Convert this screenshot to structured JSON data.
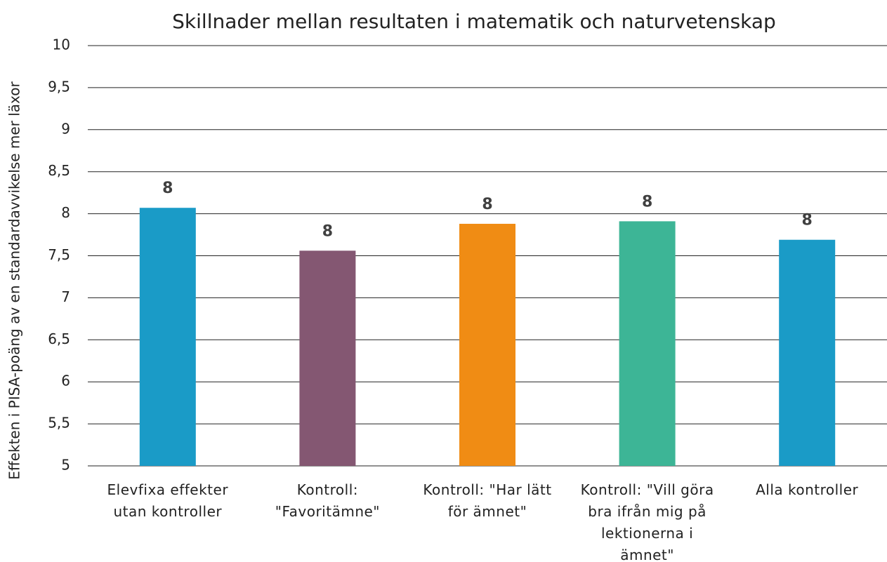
{
  "chart_data": {
    "type": "bar",
    "title": "Skillnader mellan resultaten i matematik och naturvetenskap",
    "y_label": "Effekten i PISA-poäng av en standardavvikelse mer läxor",
    "categories": [
      "Elevfixa effekter utan kontroller",
      "Kontroll: \"Favoritämne\"",
      "Kontroll: \"Har lätt för ämnet\"",
      "Kontroll: \"Vill göra bra ifrån mig på lektionerna i ämnet\"",
      "Alla kontroller"
    ],
    "values": [
      8.07,
      7.56,
      7.88,
      7.91,
      7.69
    ],
    "value_labels": [
      "8",
      "8",
      "8",
      "8",
      "8"
    ],
    "colors": [
      "#1a9bc7",
      "#845772",
      "#f08c14",
      "#3db596",
      "#1a9bc7"
    ],
    "ylim": [
      5,
      10
    ],
    "yticks": [
      5,
      {
        "value": 5.5,
        "label": "5,5"
      },
      6,
      {
        "value": 6.5,
        "label": "6,5"
      },
      7,
      {
        "value": 7.5,
        "label": "7,5"
      },
      8,
      {
        "value": 8.5,
        "label": "8,5"
      },
      9,
      {
        "value": 9.5,
        "label": "9,5"
      },
      10
    ],
    "grid": true
  }
}
